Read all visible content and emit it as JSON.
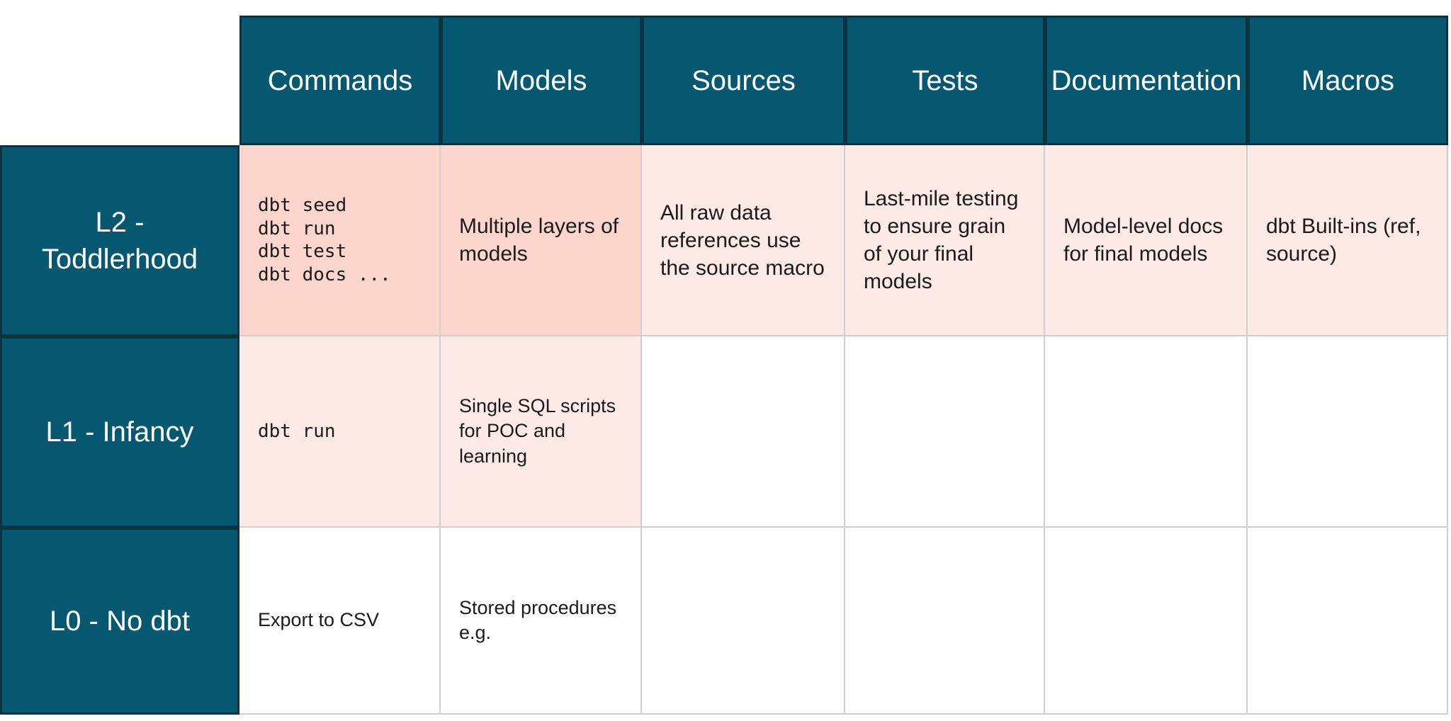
{
  "colors": {
    "header_teal": "#055870",
    "header_border": "#0a3540",
    "highlight_strong_pink": "#fcd6cc",
    "highlight_light_pink": "#fdeae7",
    "grid_border_gray": "#cfcfcf",
    "header_text": "#ffffff",
    "cell_text": "#1b1b1b"
  },
  "table": {
    "columns": [
      "Commands",
      "Models",
      "Sources",
      "Tests",
      "Documentation",
      "Macros"
    ],
    "rows": [
      {
        "label": "L2 -\nToddlerhood",
        "cells": [
          {
            "text": "dbt seed\ndbt run\ndbt test\ndbt docs ...",
            "highlight": "strong",
            "mono": true
          },
          {
            "text": "Multiple layers of models",
            "highlight": "strong",
            "mono": false
          },
          {
            "text": "All raw data references use the source macro",
            "highlight": "light",
            "mono": false
          },
          {
            "text": "Last-mile testing to ensure grain of your final models",
            "highlight": "light",
            "mono": false
          },
          {
            "text": "Model-level docs for final models",
            "highlight": "light",
            "mono": false
          },
          {
            "text": "dbt Built-ins (ref, source)",
            "highlight": "light",
            "mono": false
          }
        ]
      },
      {
        "label": "L1 - Infancy",
        "cells": [
          {
            "text": "dbt run",
            "highlight": "light",
            "mono": true
          },
          {
            "text": "Single SQL scripts for POC and learning",
            "highlight": "light",
            "mono": false
          },
          {
            "text": "",
            "highlight": "none",
            "mono": false
          },
          {
            "text": "",
            "highlight": "none",
            "mono": false
          },
          {
            "text": "",
            "highlight": "none",
            "mono": false
          },
          {
            "text": "",
            "highlight": "none",
            "mono": false
          }
        ]
      },
      {
        "label": "L0 - No dbt",
        "cells": [
          {
            "text": "Export to CSV",
            "highlight": "none",
            "mono": false
          },
          {
            "text": "Stored procedures e.g.",
            "highlight": "none",
            "mono": false
          },
          {
            "text": "",
            "highlight": "none",
            "mono": false
          },
          {
            "text": "",
            "highlight": "none",
            "mono": false
          },
          {
            "text": "",
            "highlight": "none",
            "mono": false
          },
          {
            "text": "",
            "highlight": "none",
            "mono": false
          }
        ]
      }
    ]
  }
}
